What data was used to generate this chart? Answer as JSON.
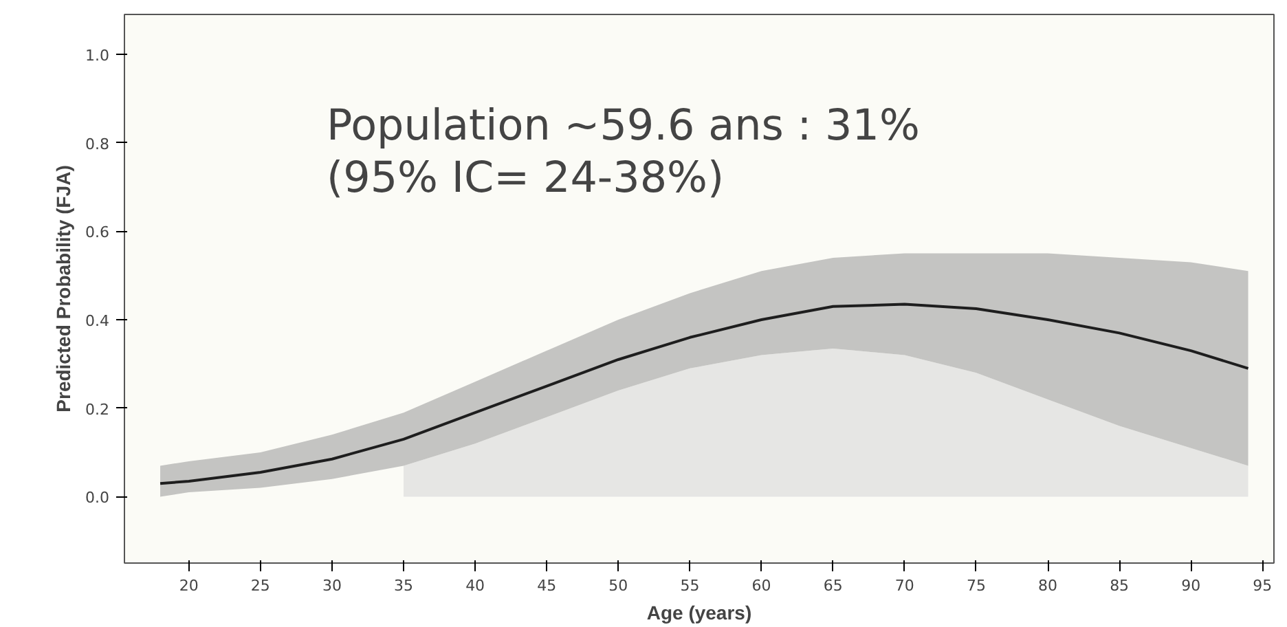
{
  "chart_data": {
    "type": "line",
    "xlabel": "Age (years)",
    "ylabel": "Predicted Probability (FJA)",
    "annotations": [
      "Population ~59.6 ans : 31%\n(95% IC= 24-38%)"
    ],
    "x": [
      18,
      20,
      25,
      30,
      35,
      40,
      45,
      50,
      55,
      60,
      65,
      70,
      75,
      80,
      85,
      90,
      94
    ],
    "series": [
      {
        "type": "area",
        "color": "#e6e6e4",
        "values": [
          null,
          null,
          null,
          null,
          0.07,
          0.12,
          0.18,
          0.24,
          0.29,
          0.32,
          0.335,
          0.32,
          0.28,
          0.22,
          0.16,
          0.11,
          0.07
        ]
      },
      {
        "color": "#1e1e1e",
        "values": [
          0.03,
          0.035,
          0.055,
          0.085,
          0.13,
          0.19,
          0.25,
          0.31,
          0.36,
          0.4,
          0.43,
          0.435,
          0.425,
          0.4,
          0.37,
          0.33,
          0.29
        ],
        "lower": [
          0.0,
          0.01,
          0.02,
          0.04,
          0.07,
          0.12,
          0.18,
          0.24,
          0.29,
          0.32,
          0.335,
          0.32,
          0.28,
          0.22,
          0.16,
          0.11,
          0.07
        ],
        "upper": [
          0.07,
          0.08,
          0.1,
          0.14,
          0.19,
          0.26,
          0.33,
          0.4,
          0.46,
          0.51,
          0.54,
          0.55,
          0.55,
          0.55,
          0.54,
          0.53,
          0.51
        ]
      }
    ],
    "xlim": [
      15.5,
      95.8
    ],
    "ylim": [
      -0.15,
      1.09
    ],
    "xticks": [
      20,
      25,
      30,
      35,
      40,
      45,
      50,
      55,
      60,
      65,
      70,
      75,
      80,
      85,
      90,
      95
    ],
    "yticks": [
      {
        "value": 0,
        "label": "0.0"
      },
      {
        "value": 0.2,
        "label": "0.2"
      },
      {
        "value": 0.4,
        "label": "0.4"
      },
      {
        "value": 0.6,
        "label": "0.6"
      },
      {
        "value": 0.8,
        "label": "0.8"
      },
      {
        "value": 1,
        "label": "1.0"
      }
    ],
    "grid": false
  }
}
